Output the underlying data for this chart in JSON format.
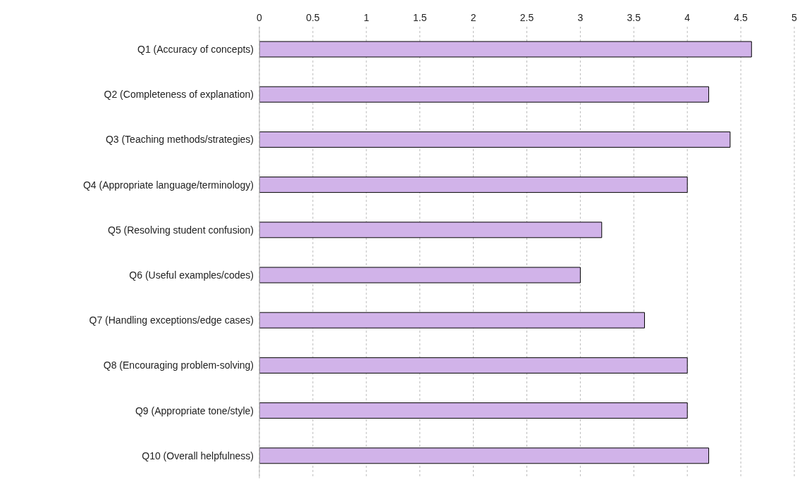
{
  "chart_data": {
    "type": "bar",
    "orientation": "horizontal",
    "categories": [
      "Q1 (Accuracy of concepts)",
      "Q2 (Completeness of explanation)",
      "Q3 (Teaching methods/strategies)",
      "Q4 (Appropriate language/terminology)",
      "Q5 (Resolving student confusion)",
      "Q6 (Useful examples/codes)",
      "Q7 (Handling exceptions/edge cases)",
      "Q8 (Encouraging problem-solving)",
      "Q9 (Appropriate tone/style)",
      "Q10 (Overall helpfulness)"
    ],
    "values": [
      4.6,
      4.2,
      4.4,
      4.0,
      3.2,
      3.0,
      3.6,
      4.0,
      4.0,
      4.2
    ],
    "color": "#d1b3e9",
    "xlim": [
      0,
      5
    ],
    "xticks": [
      0,
      0.5,
      1,
      1.5,
      2,
      2.5,
      3,
      3.5,
      4,
      4.5,
      5
    ],
    "grid": "x"
  }
}
